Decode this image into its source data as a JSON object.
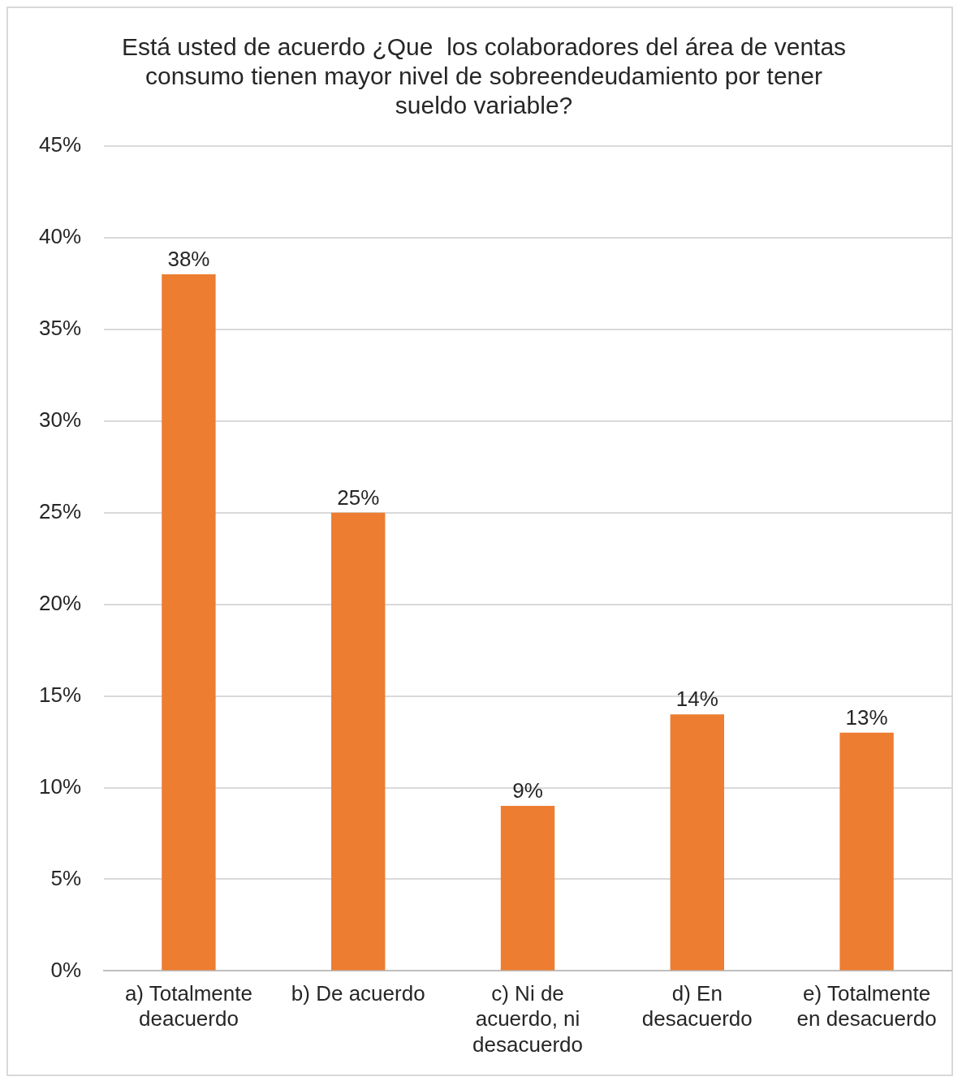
{
  "chart_data": {
    "type": "bar",
    "title": "Está usted de acuerdo ¿Que  los colaboradores del área de ventas consumo tienen mayor nivel de sobreendeudamiento por tener sueldo variable?",
    "categories": [
      "a) Totalmente deacuerdo",
      "b) De acuerdo",
      "c) Ni de acuerdo, ni desacuerdo",
      "d) En desacuerdo",
      "e) Totalmente en desacuerdo"
    ],
    "values": [
      38,
      25,
      9,
      14,
      13
    ],
    "value_labels": [
      "38%",
      "25%",
      "9%",
      "14%",
      "13%"
    ],
    "color": "#ed7d31",
    "ylim": [
      0,
      45
    ],
    "yticks": [
      {
        "value": 0,
        "label": "0%"
      },
      {
        "value": 5,
        "label": "5%"
      },
      {
        "value": 10,
        "label": "10%"
      },
      {
        "value": 15,
        "label": "15%"
      },
      {
        "value": 20,
        "label": "20%"
      },
      {
        "value": 25,
        "label": "25%"
      },
      {
        "value": 30,
        "label": "30%"
      },
      {
        "value": 35,
        "label": "35%"
      },
      {
        "value": 40,
        "label": "40%"
      },
      {
        "value": 45,
        "label": "45%"
      }
    ],
    "grid": "y",
    "legend": false
  }
}
